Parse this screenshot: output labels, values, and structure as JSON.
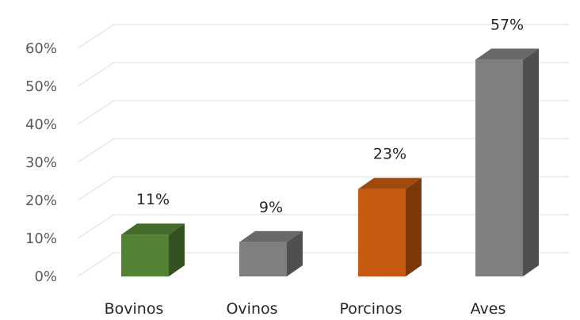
{
  "chart_data": {
    "type": "bar",
    "categories": [
      "Bovinos",
      "Ovinos",
      "Porcinos",
      "Aves"
    ],
    "values": [
      11,
      9,
      23,
      57
    ],
    "value_labels": [
      "11%",
      "9%",
      "23%",
      "57%"
    ],
    "bar_colors": [
      "#548235",
      "#7f7f7f",
      "#c55a11",
      "#7f7f7f"
    ],
    "ylim": [
      0,
      60
    ],
    "yticks": [
      0,
      10,
      20,
      30,
      40,
      50,
      60
    ],
    "ytick_labels": [
      "0%",
      "10%",
      "20%",
      "30%",
      "40%",
      "50%",
      "60%"
    ],
    "title": "",
    "xlabel": "",
    "ylabel": "",
    "grid": true,
    "style": "3d-column"
  }
}
